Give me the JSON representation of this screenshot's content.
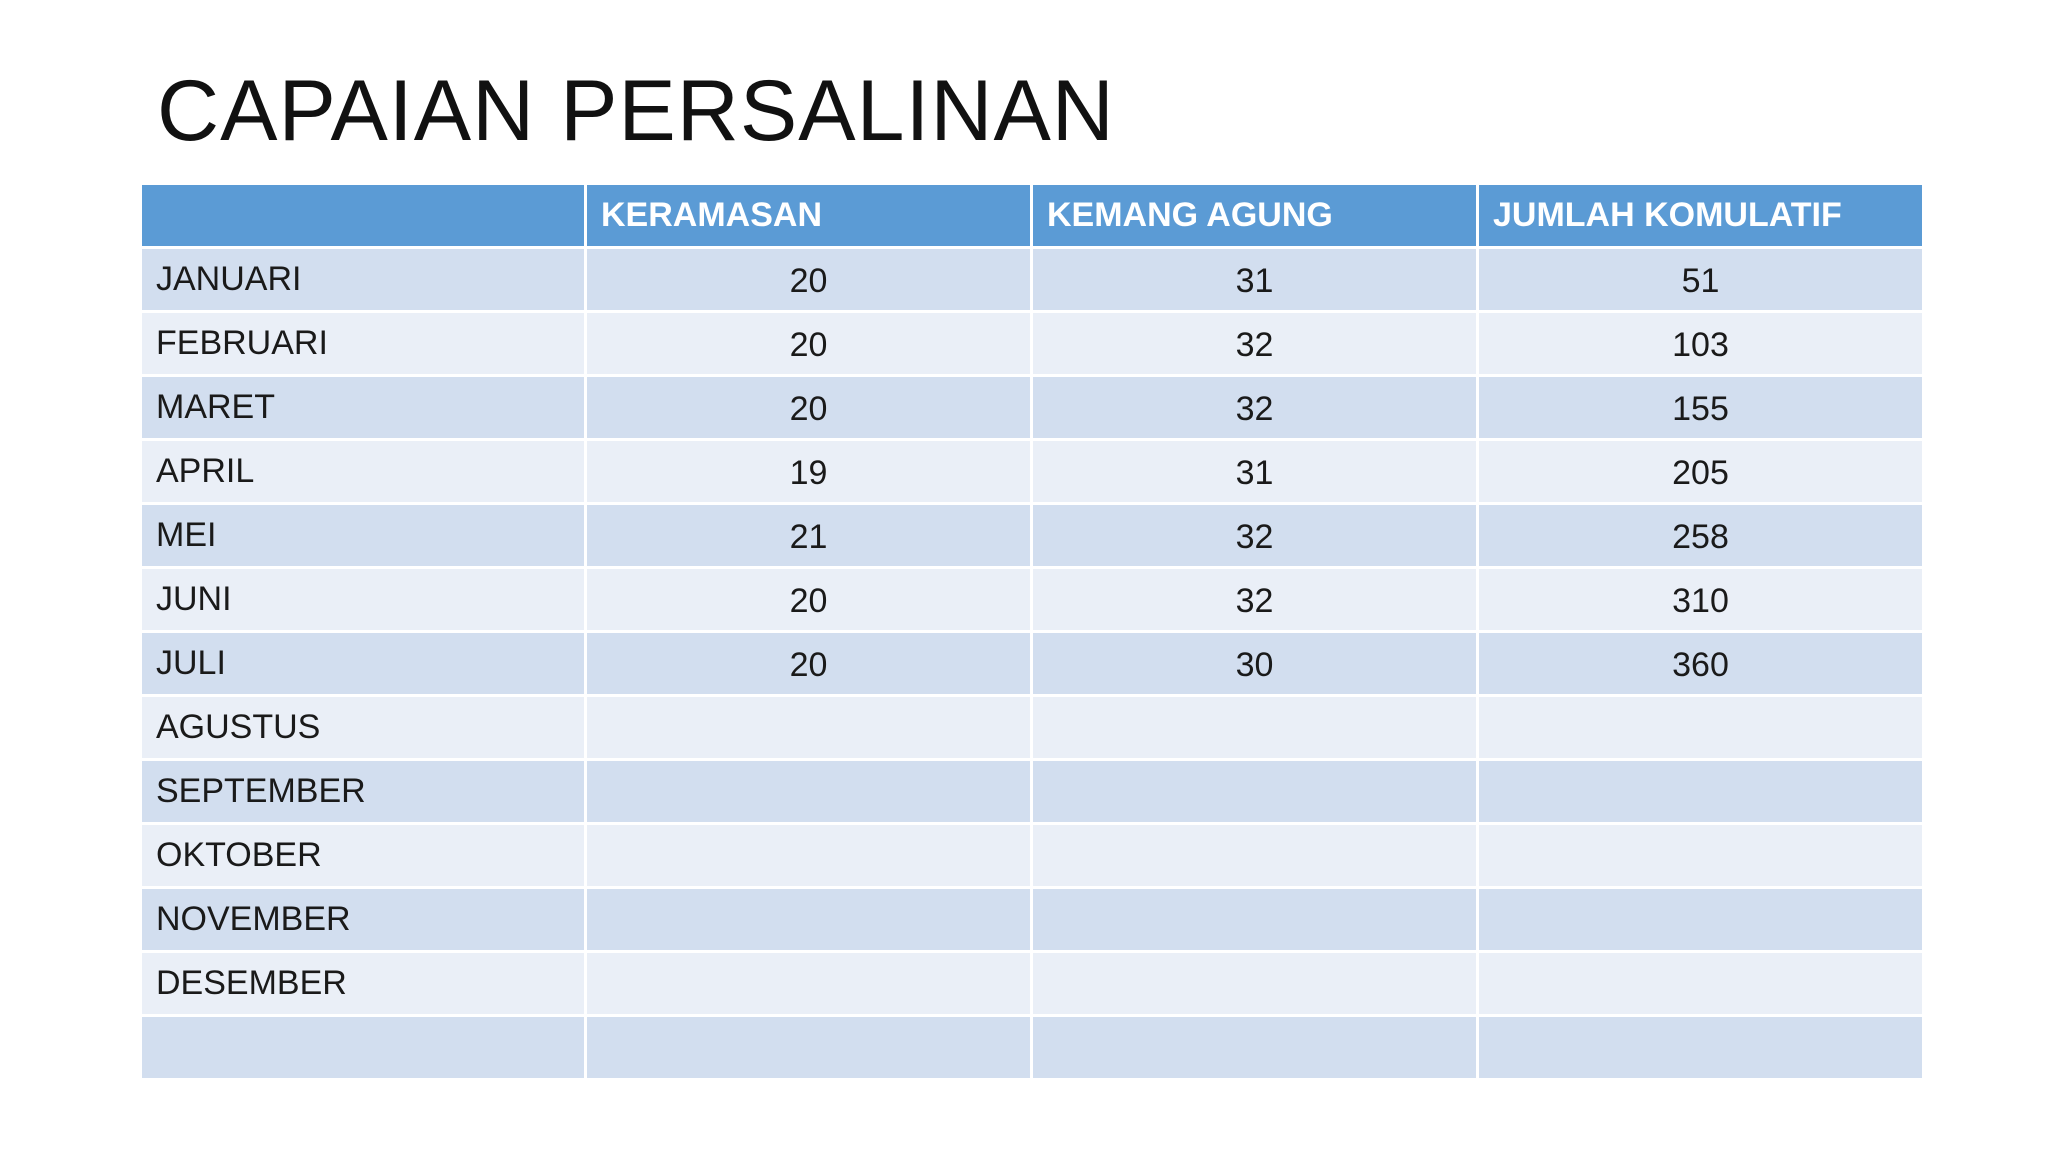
{
  "slide": {
    "title": "CAPAIAN PERSALINAN"
  },
  "table": {
    "headers": [
      "",
      "KERAMASAN",
      "KEMANG AGUNG",
      "JUMLAH KOMULATIF"
    ],
    "rows": [
      {
        "month": "JANUARI",
        "keramasan": "20",
        "kemang_agung": "31",
        "jumlah_komulatif": "51"
      },
      {
        "month": "FEBRUARI",
        "keramasan": "20",
        "kemang_agung": "32",
        "jumlah_komulatif": "103"
      },
      {
        "month": "MARET",
        "keramasan": "20",
        "kemang_agung": "32",
        "jumlah_komulatif": "155"
      },
      {
        "month": "APRIL",
        "keramasan": "19",
        "kemang_agung": "31",
        "jumlah_komulatif": "205"
      },
      {
        "month": "MEI",
        "keramasan": "21",
        "kemang_agung": "32",
        "jumlah_komulatif": "258"
      },
      {
        "month": "JUNI",
        "keramasan": "20",
        "kemang_agung": "32",
        "jumlah_komulatif": "310"
      },
      {
        "month": "JULI",
        "keramasan": "20",
        "kemang_agung": "30",
        "jumlah_komulatif": "360"
      },
      {
        "month": "AGUSTUS",
        "keramasan": "",
        "kemang_agung": "",
        "jumlah_komulatif": ""
      },
      {
        "month": "SEPTEMBER",
        "keramasan": "",
        "kemang_agung": "",
        "jumlah_komulatif": ""
      },
      {
        "month": "OKTOBER",
        "keramasan": "",
        "kemang_agung": "",
        "jumlah_komulatif": ""
      },
      {
        "month": "NOVEMBER",
        "keramasan": "",
        "kemang_agung": "",
        "jumlah_komulatif": ""
      },
      {
        "month": "DESEMBER",
        "keramasan": "",
        "kemang_agung": "",
        "jumlah_komulatif": ""
      },
      {
        "month": "",
        "keramasan": "",
        "kemang_agung": "",
        "jumlah_komulatif": ""
      }
    ]
  },
  "colors": {
    "header_bg": "#5b9bd5",
    "row_dark": "#d2deef",
    "row_light": "#eaeff7"
  }
}
